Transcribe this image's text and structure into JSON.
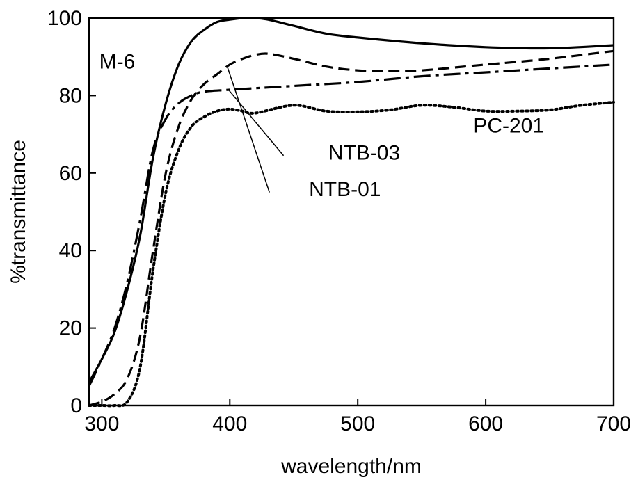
{
  "chart_data": {
    "type": "line",
    "title": "",
    "xlabel": "wavelength/nm",
    "ylabel": "%transmittance",
    "xlim": [
      290,
      700
    ],
    "ylim": [
      0,
      100
    ],
    "x_ticks": [
      300,
      400,
      500,
      600,
      700
    ],
    "y_ticks": [
      0,
      20,
      40,
      60,
      80,
      100
    ],
    "grid": false,
    "legend": "none",
    "series": [
      {
        "name": "M-6",
        "style": "solid",
        "color": "#000000",
        "points": [
          [
            290,
            6
          ],
          [
            300,
            12
          ],
          [
            310,
            19
          ],
          [
            320,
            30
          ],
          [
            330,
            44
          ],
          [
            340,
            64
          ],
          [
            350,
            78
          ],
          [
            360,
            88
          ],
          [
            370,
            94
          ],
          [
            380,
            97
          ],
          [
            390,
            99
          ],
          [
            400,
            99.6
          ],
          [
            410,
            100
          ],
          [
            420,
            100
          ],
          [
            430,
            99.6
          ],
          [
            450,
            98
          ],
          [
            475,
            96
          ],
          [
            500,
            95
          ],
          [
            550,
            93.5
          ],
          [
            600,
            92.5
          ],
          [
            650,
            92.2
          ],
          [
            700,
            93
          ]
        ]
      },
      {
        "name": "NTB-03",
        "style": "dashdot",
        "color": "#000000",
        "points": [
          [
            290,
            5
          ],
          [
            300,
            12
          ],
          [
            310,
            20
          ],
          [
            320,
            32
          ],
          [
            330,
            48
          ],
          [
            340,
            66
          ],
          [
            350,
            74
          ],
          [
            360,
            78
          ],
          [
            370,
            80
          ],
          [
            380,
            81
          ],
          [
            400,
            81.5
          ],
          [
            450,
            82.5
          ],
          [
            500,
            83.5
          ],
          [
            550,
            85
          ],
          [
            600,
            86
          ],
          [
            650,
            87
          ],
          [
            700,
            88
          ]
        ]
      },
      {
        "name": "NTB-01",
        "style": "dashed",
        "color": "#000000",
        "points": [
          [
            290,
            0
          ],
          [
            300,
            1
          ],
          [
            310,
            3
          ],
          [
            320,
            7
          ],
          [
            330,
            18
          ],
          [
            340,
            40
          ],
          [
            350,
            60
          ],
          [
            360,
            72
          ],
          [
            370,
            79
          ],
          [
            380,
            83
          ],
          [
            390,
            85.5
          ],
          [
            400,
            88
          ],
          [
            410,
            89.5
          ],
          [
            420,
            90.5
          ],
          [
            430,
            90.8
          ],
          [
            450,
            89.5
          ],
          [
            475,
            87.5
          ],
          [
            500,
            86.5
          ],
          [
            525,
            86.3
          ],
          [
            550,
            86.5
          ],
          [
            600,
            88
          ],
          [
            650,
            89.5
          ],
          [
            700,
            91.5
          ]
        ]
      },
      {
        "name": "PC-201",
        "style": "dotted",
        "color": "#000000",
        "points": [
          [
            290,
            0
          ],
          [
            300,
            0
          ],
          [
            310,
            0
          ],
          [
            320,
            1
          ],
          [
            330,
            10
          ],
          [
            340,
            35
          ],
          [
            350,
            55
          ],
          [
            360,
            66
          ],
          [
            370,
            72
          ],
          [
            380,
            74.5
          ],
          [
            390,
            76
          ],
          [
            400,
            76.5
          ],
          [
            410,
            76
          ],
          [
            420,
            75.5
          ],
          [
            450,
            77.5
          ],
          [
            475,
            76
          ],
          [
            500,
            75.8
          ],
          [
            525,
            76.3
          ],
          [
            550,
            77.5
          ],
          [
            575,
            77
          ],
          [
            600,
            76
          ],
          [
            625,
            76
          ],
          [
            650,
            76.3
          ],
          [
            675,
            77.5
          ],
          [
            700,
            78.3
          ]
        ]
      }
    ],
    "annotations": [
      {
        "text": "M-6",
        "x": 312,
        "y": 87
      },
      {
        "text": "NTB-03",
        "x": 505,
        "y": 63.5
      },
      {
        "text": "NTB-01",
        "x": 490,
        "y": 54
      },
      {
        "text": "PC-201",
        "x": 618,
        "y": 70.5
      }
    ],
    "leaders": [
      {
        "from": [
          442,
          64.5
        ],
        "to": [
          399,
          81.5
        ]
      },
      {
        "from": [
          431,
          55
        ],
        "to": [
          398,
          87.5
        ]
      }
    ]
  }
}
